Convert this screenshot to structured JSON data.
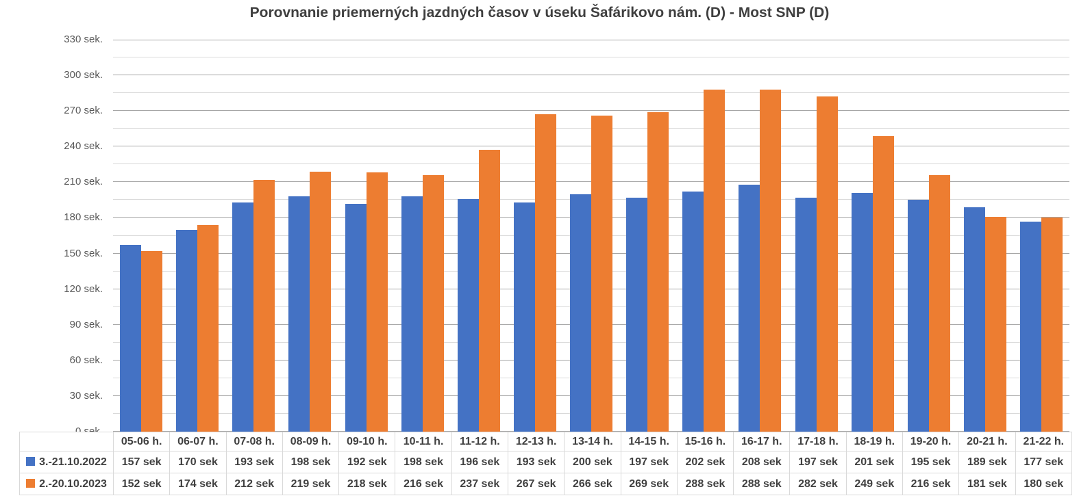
{
  "chart_data": {
    "type": "bar",
    "title": "Porovnanie priemerných jazdných časov v úseku Šafárikovo nám. (D) - Most SNP (D)",
    "categories": [
      "05-06 h.",
      "06-07 h.",
      "07-08 h.",
      "08-09 h.",
      "09-10 h.",
      "10-11 h.",
      "11-12 h.",
      "12-13 h.",
      "13-14 h.",
      "14-15 h.",
      "15-16 h.",
      "16-17 h.",
      "17-18 h.",
      "18-19 h.",
      "19-20 h.",
      "20-21 h.",
      "21-22 h."
    ],
    "series": [
      {
        "name": "3.-21.10.2022",
        "color": "#4472C4",
        "values": [
          157,
          170,
          193,
          198,
          192,
          198,
          196,
          193,
          200,
          197,
          202,
          208,
          197,
          201,
          195,
          189,
          177
        ]
      },
      {
        "name": "2.-20.10.2023",
        "color": "#ED7D31",
        "values": [
          152,
          174,
          212,
          219,
          218,
          216,
          237,
          267,
          266,
          269,
          288,
          288,
          282,
          249,
          216,
          181,
          180
        ]
      }
    ],
    "value_suffix": " sek",
    "y_axis": {
      "min": 0,
      "max": 330,
      "major_step": 30,
      "minor_step": 15,
      "tick_labels": [
        "0 sek.",
        "30 sek.",
        "60 sek.",
        "90 sek.",
        "120 sek.",
        "150 sek.",
        "180 sek.",
        "210 sek.",
        "240 sek.",
        "270 sek.",
        "300 sek.",
        "330 sek."
      ]
    },
    "grid": true,
    "legend_position": "table-left",
    "colors": {
      "major_gridline": "#a6a6a6",
      "minor_gridline": "#d9d9d9",
      "axis_text": "#595959",
      "table_text": "#404040",
      "table_border": "#d9d9d9",
      "title_text": "#3f3f3f"
    }
  }
}
